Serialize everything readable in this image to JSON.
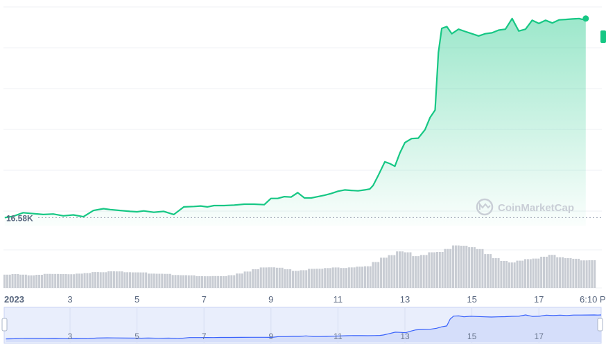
{
  "chart_data": {
    "type": "area",
    "title": "",
    "xlabel": "",
    "ylabel": "",
    "line_color": "#16c784",
    "volume_color": "#c8ccd3",
    "navigator_color": "#3861fb",
    "start_value_label": "16.58K",
    "watermark": "CoinMarketCap",
    "x_ticks": [
      {
        "label": "2023",
        "day": 1,
        "bold": true
      },
      {
        "label": "3",
        "day": 3
      },
      {
        "label": "5",
        "day": 5
      },
      {
        "label": "7",
        "day": 7
      },
      {
        "label": "9",
        "day": 9
      },
      {
        "label": "11",
        "day": 11
      },
      {
        "label": "13",
        "day": 13
      },
      {
        "label": "15",
        "day": 15
      },
      {
        "label": "17",
        "day": 17
      },
      {
        "label": "6:10 P",
        "day": 18.4
      }
    ],
    "navigator_ticks": [
      {
        "label": "3",
        "day": 3
      },
      {
        "label": "5",
        "day": 5
      },
      {
        "label": "7",
        "day": 7
      },
      {
        "label": "9",
        "day": 9
      },
      {
        "label": "11",
        "day": 11
      },
      {
        "label": "13",
        "day": 13
      },
      {
        "label": "15",
        "day": 15
      },
      {
        "label": "17",
        "day": 17
      }
    ],
    "price_ylim": [
      16400,
      21300
    ],
    "series": [
      {
        "x": [
          1.05,
          1.3,
          1.6,
          1.9,
          2.2,
          2.5,
          2.8,
          3.1,
          3.4,
          3.7,
          4.0,
          4.2,
          4.5,
          4.8,
          5.0,
          5.2,
          5.5,
          5.8,
          6.1,
          6.4,
          6.7,
          6.9,
          7.1,
          7.3,
          7.6,
          7.9,
          8.2,
          8.5,
          8.8,
          9.0,
          9.2,
          9.4,
          9.6,
          9.8,
          10.0,
          10.2,
          10.4,
          10.6,
          10.8,
          11.0,
          11.2,
          11.4,
          11.6,
          11.8,
          11.95,
          12.05,
          12.2,
          12.4,
          12.55,
          12.7,
          12.85,
          13.0,
          13.2,
          13.4,
          13.6,
          13.75,
          13.9,
          14.0,
          14.1,
          14.25,
          14.4,
          14.6,
          14.8,
          15.0,
          15.2,
          15.4,
          15.6,
          15.8,
          16.0,
          16.2,
          16.4,
          16.6,
          16.8,
          17.0,
          17.2,
          17.4,
          17.6,
          17.8,
          18.0,
          18.2,
          18.3,
          18.4
        ],
        "y": [
          16580,
          16610,
          16690,
          16670,
          16650,
          16660,
          16620,
          16640,
          16600,
          16740,
          16780,
          16760,
          16740,
          16720,
          16710,
          16730,
          16700,
          16720,
          16650,
          16820,
          16830,
          16840,
          16820,
          16850,
          16850,
          16860,
          16880,
          16880,
          16870,
          17010,
          17010,
          17050,
          17040,
          17140,
          17020,
          17020,
          17050,
          17080,
          17120,
          17170,
          17200,
          17190,
          17180,
          17200,
          17220,
          17300,
          17520,
          17830,
          17790,
          17730,
          18030,
          18260,
          18350,
          18360,
          18550,
          18820,
          18990,
          20280,
          20820,
          20860,
          20700,
          20800,
          20750,
          20700,
          20650,
          20700,
          20720,
          20780,
          20800,
          21040,
          20760,
          20800,
          21000,
          20930,
          21000,
          20940,
          21010,
          21020,
          21030,
          21040,
          21020,
          21040
        ]
      }
    ],
    "volume": [
      38,
      39,
      37,
      36,
      37,
      39,
      40,
      39,
      38,
      41,
      42,
      44,
      45,
      47,
      46,
      45,
      44,
      43,
      41,
      40,
      39,
      37,
      36,
      35,
      34,
      33,
      33,
      34,
      36,
      40,
      47,
      53,
      57,
      59,
      57,
      52,
      49,
      50,
      53,
      55,
      56,
      57,
      57,
      58,
      59,
      62,
      73,
      84,
      94,
      103,
      99,
      91,
      93,
      99,
      103,
      110,
      118,
      121,
      115,
      108,
      97,
      84,
      75,
      73,
      77,
      80,
      84,
      88,
      92,
      88,
      84,
      81,
      79,
      78
    ]
  }
}
